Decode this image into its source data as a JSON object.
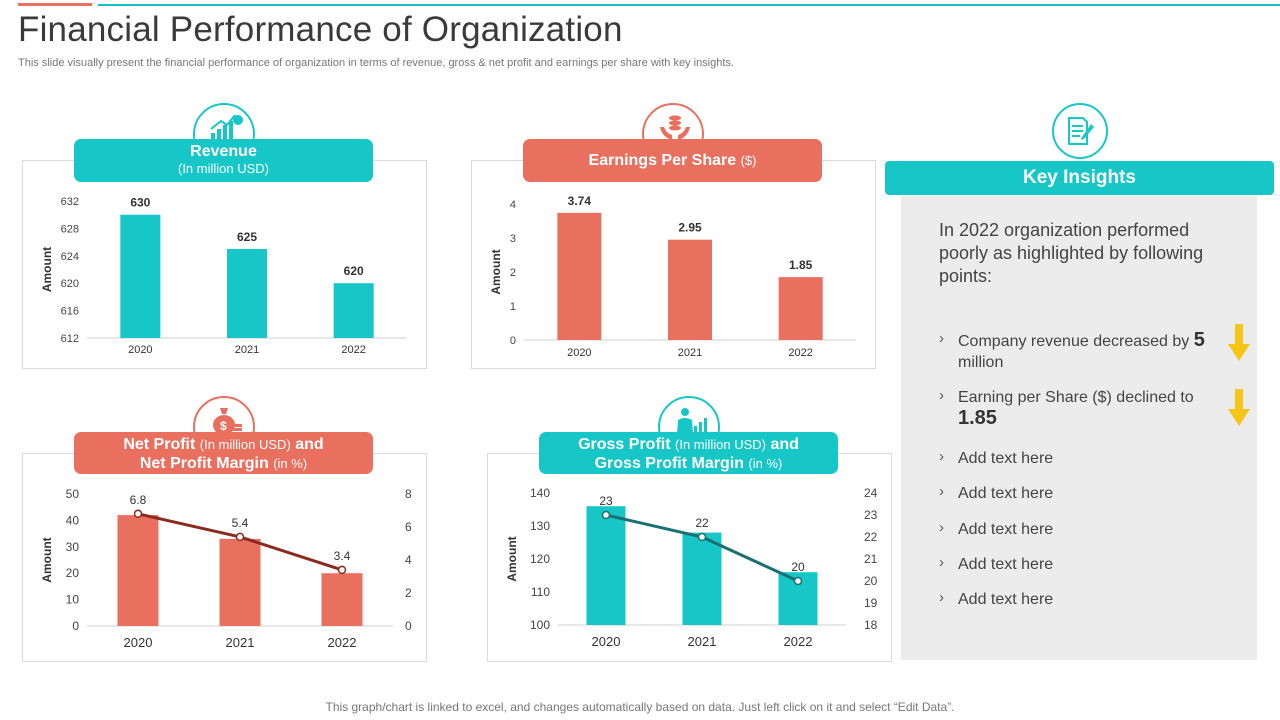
{
  "page": {
    "title": "Financial Performance of Organization",
    "subtitle": "This slide visually present the financial performance of organization in terms of revenue, gross & net profit and earnings per share with key insights.",
    "footer": "This graph/chart is linked to excel, and changes automatically based on data. Just left click on it and select “Edit Data”."
  },
  "colors": {
    "teal": "#17c7c8",
    "coral": "#e96f5e",
    "line_dark_red": "#8b2a1e",
    "line_dark_teal": "#1a6f73",
    "arrow": "#f5c518"
  },
  "icons": {
    "revenue": "growth-money-icon",
    "eps": "hands-coins-icon",
    "net_profit": "money-bag-icon",
    "gross_profit": "presenter-chart-icon",
    "insights": "document-pen-icon",
    "down_arrow": "down-arrow-icon"
  },
  "headers": {
    "revenue": {
      "main": "Revenue",
      "sub": "(In million USD)"
    },
    "eps": {
      "main": "Earnings Per Share",
      "sub": "($)"
    },
    "net_profit": {
      "main1": "Net Profit",
      "sub1": "(In million USD)",
      "and1": "and",
      "main2": "Net Profit Margin",
      "sub2": "(in %)"
    },
    "gross_profit": {
      "main1": "Gross Profit",
      "sub1": "(In million USD)",
      "and1": "and",
      "main2": "Gross Profit Margin",
      "sub2": "(in %)"
    }
  },
  "chart_data": [
    {
      "id": "revenue",
      "type": "bar",
      "title": "Revenue (In million USD)",
      "categories": [
        "2020",
        "2021",
        "2022"
      ],
      "values": [
        630,
        625,
        620
      ],
      "ylabel": "Amount",
      "ylim": [
        612,
        632
      ],
      "yticks": [
        612,
        616,
        620,
        624,
        628,
        632
      ]
    },
    {
      "id": "eps",
      "type": "bar",
      "title": "Earnings Per Share ($)",
      "categories": [
        "2020",
        "2021",
        "2022"
      ],
      "values": [
        3.74,
        2.95,
        1.85
      ],
      "ylabel": "Amount",
      "ylim": [
        0,
        4
      ],
      "yticks": [
        0,
        1,
        2,
        3,
        4
      ]
    },
    {
      "id": "net_profit",
      "type": "bar",
      "title": "Net Profit (In million USD) and Net Profit Margin (in %)",
      "categories": [
        "2020",
        "2021",
        "2022"
      ],
      "series": [
        {
          "name": "Net Profit",
          "type": "bar",
          "values": [
            42,
            33,
            20
          ]
        },
        {
          "name": "Net Profit Margin",
          "type": "line",
          "values": [
            6.8,
            5.4,
            3.4
          ],
          "labels": [
            "6.8",
            "5.4",
            "3.4"
          ]
        }
      ],
      "ylabel": "Amount",
      "ylim": [
        0,
        50
      ],
      "yticks": [
        0,
        10,
        20,
        30,
        40,
        50
      ],
      "y2lim": [
        0,
        8
      ],
      "y2ticks": [
        0,
        2,
        4,
        6,
        8
      ]
    },
    {
      "id": "gross_profit",
      "type": "bar",
      "title": "Gross Profit (In million USD) and Gross Profit Margin (in %)",
      "categories": [
        "2020",
        "2021",
        "2022"
      ],
      "series": [
        {
          "name": "Gross Profit",
          "type": "bar",
          "values": [
            136,
            128,
            116
          ]
        },
        {
          "name": "Gross Profit Margin",
          "type": "line",
          "values": [
            23,
            22,
            20
          ],
          "labels": [
            "23",
            "22",
            "20"
          ]
        }
      ],
      "ylabel": "Amount",
      "ylim": [
        100,
        140
      ],
      "yticks": [
        100,
        110,
        120,
        130,
        140
      ],
      "y2lim": [
        18,
        24
      ],
      "y2ticks": [
        18,
        19,
        20,
        21,
        22,
        23,
        24
      ]
    }
  ],
  "insights": {
    "title": "Key Insights",
    "intro": "In 2022 organization performed poorly as highlighted by following points:",
    "chevron": "›",
    "items": [
      {
        "text": "Company revenue decreased by",
        "value": "5",
        "suffix": "million"
      },
      {
        "text": "Earning per Share ($) declined to",
        "value": "1.85"
      },
      {
        "text": "Add text here"
      },
      {
        "text": "Add text here"
      },
      {
        "text": "Add text here"
      },
      {
        "text": "Add text here"
      },
      {
        "text": "Add text here"
      }
    ]
  }
}
